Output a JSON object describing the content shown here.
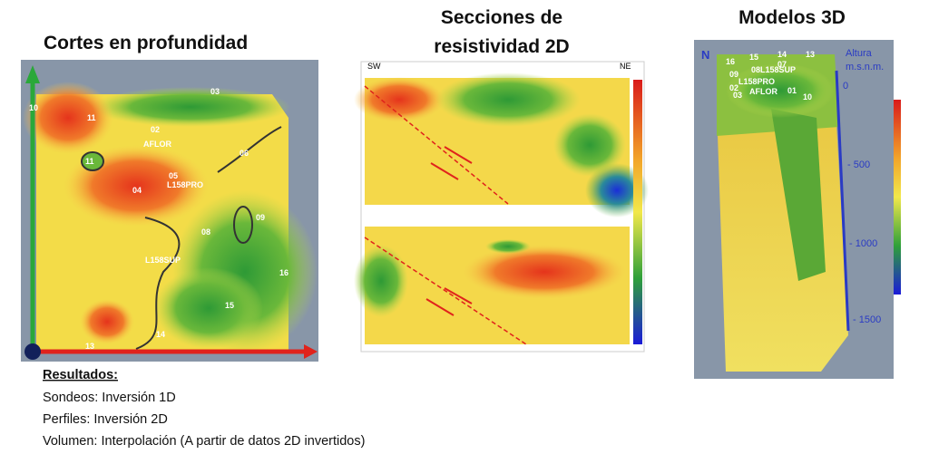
{
  "panels": [
    {
      "title": "Cortes en profundidad",
      "labels": [
        "10",
        "11",
        "02",
        "AFLOR",
        "11",
        "05",
        "L158PRO",
        "04",
        "03",
        "06",
        "09",
        "08",
        "L158SUP",
        "16",
        "15",
        "14",
        "13"
      ]
    },
    {
      "title_lines": [
        "Secciones de",
        "resistividad  2D"
      ],
      "labels": [
        "SW",
        "NE"
      ]
    },
    {
      "title": "Modelos 3D",
      "labels": [
        "N",
        "16",
        "15",
        "14",
        "13",
        "09",
        "08",
        "07",
        "L158SUP",
        "L158PRO",
        "02",
        "03",
        "AFLOR",
        "01",
        "10"
      ],
      "axis_title_lines": [
        "Altura",
        "m.s.n.m."
      ],
      "axis_ticks": [
        "0",
        "- 500",
        "- 1000",
        "- 1500"
      ]
    }
  ],
  "results": {
    "heading": "Resultados:",
    "lines": [
      "Sondeos: Inversión 1D",
      "Perfiles: Inversión 2D",
      "Volumen: Interpolación (A partir de datos 2D invertidos)"
    ]
  }
}
